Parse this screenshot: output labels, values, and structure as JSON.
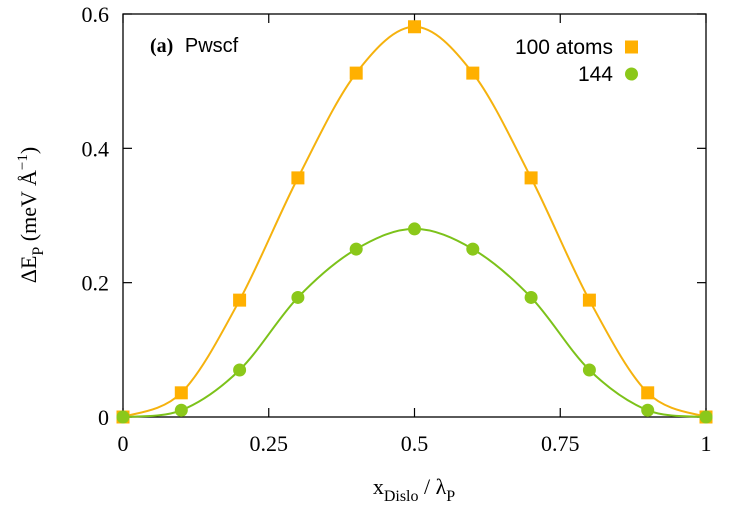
{
  "chart_data": {
    "type": "scatter",
    "panel_tag": "(a)",
    "panel_title": "Pwscf",
    "xlabel": {
      "main": "x",
      "sub": "Dislo",
      "sep": " / ",
      "main2": "λ",
      "sub2": "P"
    },
    "ylabel": {
      "main": "ΔE",
      "sub": "P",
      "unit_pre": " (meV Å",
      "sup": "−1",
      "unit_post": ")"
    },
    "xlim": [
      0,
      1
    ],
    "ylim": [
      0,
      0.6
    ],
    "x_ticks": [
      0,
      0.25,
      0.5,
      0.75,
      1
    ],
    "x_tick_labels": [
      "0",
      "0.25",
      "0.5",
      "0.75",
      "1"
    ],
    "y_ticks": [
      0,
      0.2,
      0.4,
      0.6
    ],
    "y_tick_labels": [
      "0",
      "0.2",
      "0.4",
      "0.6"
    ],
    "grid": false,
    "legend_position": "top-right",
    "series": [
      {
        "name": "100 atoms",
        "marker": "square",
        "color": "#FFB000",
        "line_color": "#F5B20E",
        "x": [
          0,
          0.1,
          0.2,
          0.3,
          0.4,
          0.5,
          0.6,
          0.7,
          0.8,
          0.9,
          1.0
        ],
        "y": [
          0.0,
          0.036,
          0.174,
          0.356,
          0.512,
          0.581,
          0.512,
          0.356,
          0.174,
          0.036,
          0.0
        ]
      },
      {
        "name": "144",
        "marker": "circle",
        "color": "#8BC81A",
        "line_color": "#7CC21A",
        "x": [
          0,
          0.1,
          0.2,
          0.3,
          0.4,
          0.5,
          0.6,
          0.7,
          0.8,
          0.9,
          1.0
        ],
        "y": [
          0.0,
          0.01,
          0.07,
          0.178,
          0.25,
          0.28,
          0.25,
          0.178,
          0.07,
          0.01,
          0.0
        ]
      }
    ]
  }
}
